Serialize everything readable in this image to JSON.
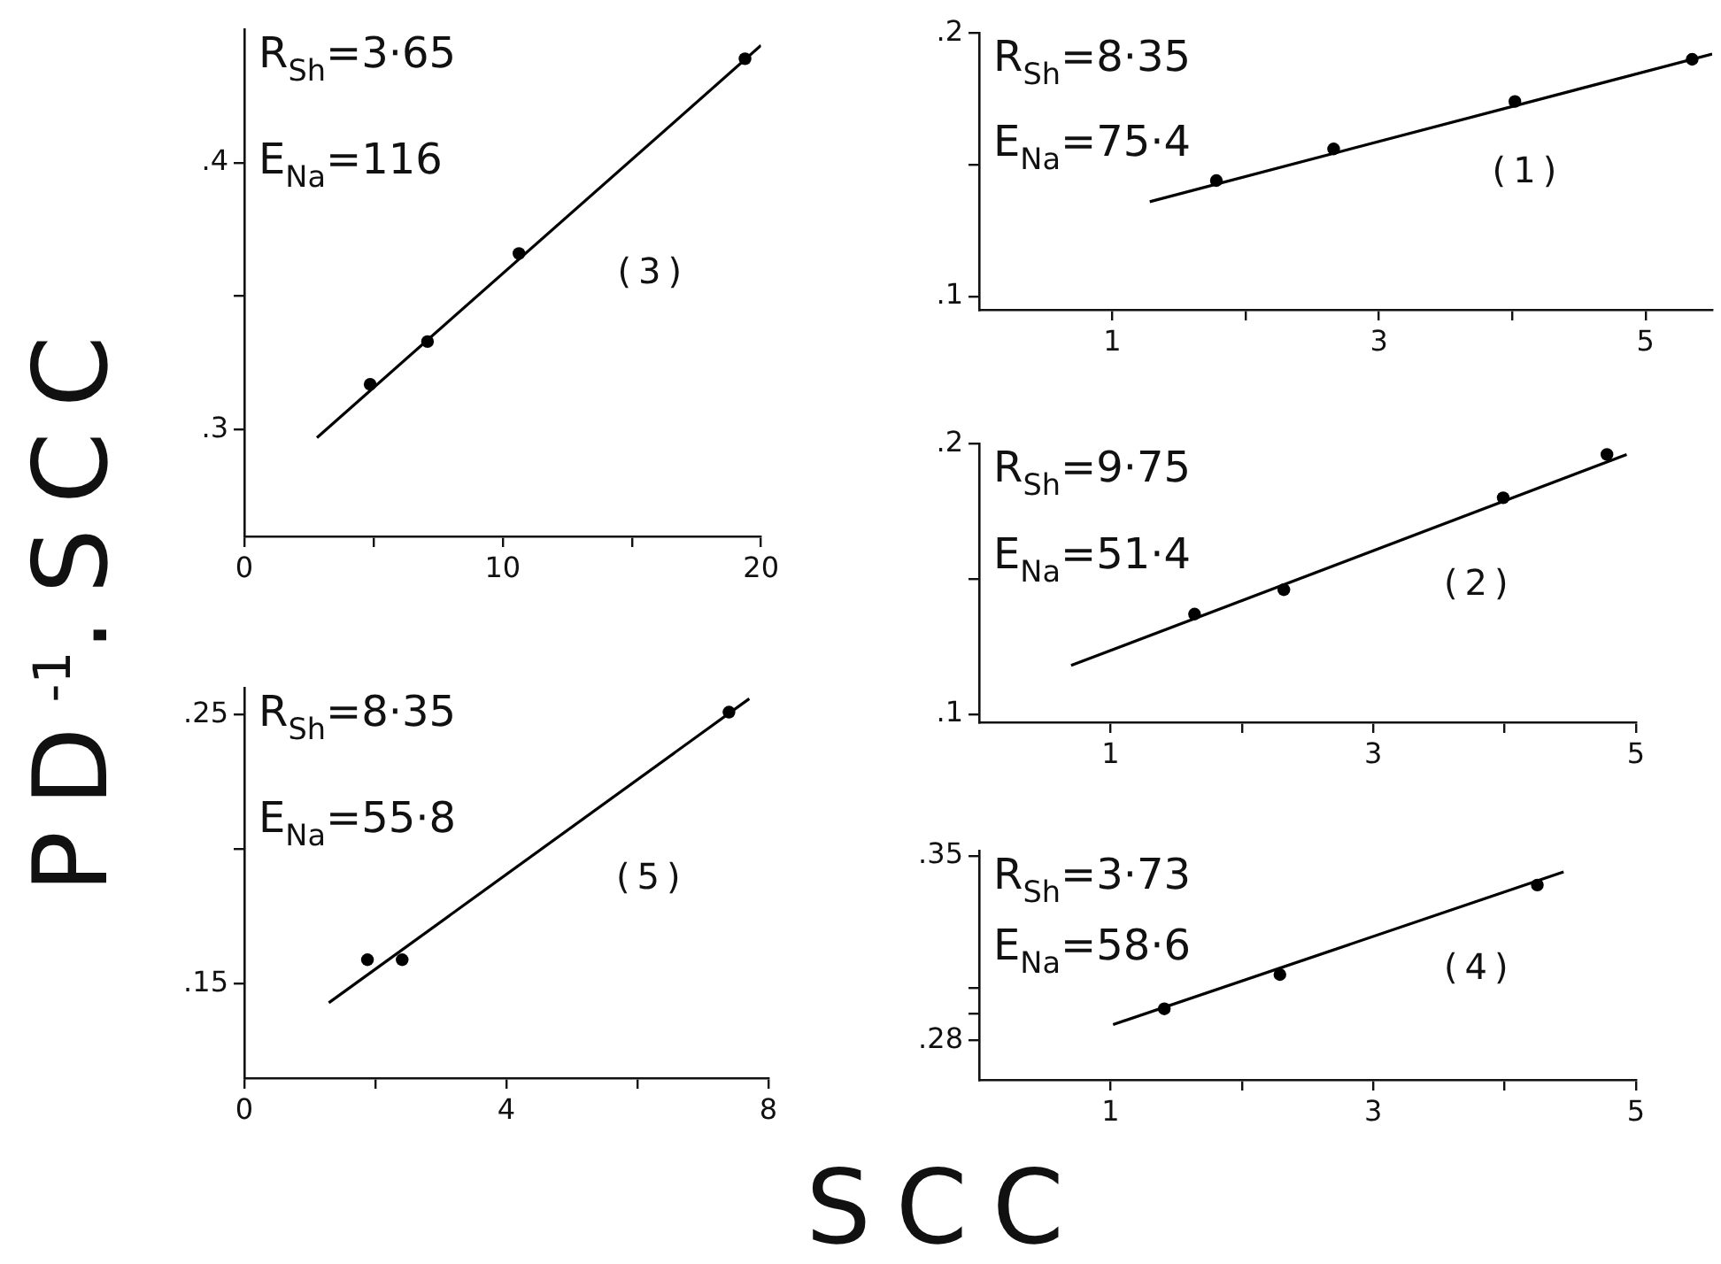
{
  "chart_data": [
    {
      "type": "scatter",
      "ylabel": "PD$^{-1}$.SCC",
      "marker": "circle",
      "legend": false,
      "grid": false,
      "xlim": [
        0,
        20
      ],
      "ylim": [
        0.26,
        0.45
      ],
      "xticks": [
        0,
        {
          "value": 5,
          "label": null
        },
        10,
        {
          "value": 15,
          "label": null
        },
        20
      ],
      "yticks": [
        {
          "value": 0.3,
          "label": ".3"
        },
        {
          "value": 0.35,
          "label": null
        },
        {
          "value": 0.4,
          "label": ".4"
        }
      ],
      "annotations": [
        "R$_{Sh}$=3·65",
        "E$_{Na}$=116",
        "(3)"
      ],
      "series": [
        {
          "color": "#000000",
          "x": [
            4.87,
            7.09,
            10.63,
            19.38
          ],
          "values": [
            0.317,
            0.333,
            0.366,
            0.439
          ]
        },
        {
          "type": "line",
          "marker": "none",
          "color": "#000000",
          "x": [
            2.81,
            20
          ],
          "values": [
            0.297,
            0.444
          ]
        }
      ]
    },
    {
      "type": "scatter",
      "marker": "circle",
      "legend": false,
      "grid": false,
      "xlim": [
        0,
        5.5
      ],
      "ylim": [
        0.095,
        0.2
      ],
      "xticks": [
        1,
        {
          "value": 2,
          "label": null
        },
        3,
        {
          "value": 4,
          "label": null
        },
        5
      ],
      "yticks": [
        {
          "value": 0.1,
          "label": ".1"
        },
        {
          "value": 0.15,
          "label": null
        },
        {
          "value": 0.2,
          "label": ".2"
        }
      ],
      "annotations": [
        "R$_{Sh}$=8·35",
        "E$_{Na}$=75·4",
        "(1)"
      ],
      "series": [
        {
          "color": "#000000",
          "x": [
            1.78,
            2.66,
            4.02,
            5.35
          ],
          "values": [
            0.144,
            0.156,
            0.174,
            0.19
          ]
        },
        {
          "type": "line",
          "marker": "none",
          "color": "#000000",
          "x": [
            1.28,
            5.5
          ],
          "values": [
            0.136,
            0.192
          ]
        }
      ]
    },
    {
      "type": "scatter",
      "marker": "circle",
      "legend": false,
      "grid": false,
      "xlim": [
        0,
        5
      ],
      "ylim": [
        0.097,
        0.2
      ],
      "xticks": [
        1,
        {
          "value": 2,
          "label": null
        },
        3,
        {
          "value": 4,
          "label": null
        },
        5
      ],
      "yticks": [
        {
          "value": 0.1,
          "label": ".1"
        },
        {
          "value": 0.15,
          "label": null
        },
        {
          "value": 0.2,
          "label": ".2"
        }
      ],
      "annotations": [
        "R$_{Sh}$=9·75",
        "E$_{Na}$=51·4",
        "(2)"
      ],
      "series": [
        {
          "color": "#000000",
          "x": [
            1.64,
            2.32,
            3.99,
            4.78
          ],
          "values": [
            0.137,
            0.146,
            0.18,
            0.196
          ]
        },
        {
          "type": "line",
          "marker": "none",
          "color": "#000000",
          "x": [
            0.7,
            4.93
          ],
          "values": [
            0.118,
            0.196
          ]
        }
      ]
    },
    {
      "type": "scatter",
      "xlabel": "SCC",
      "marker": "circle",
      "legend": false,
      "grid": false,
      "xlim": [
        0,
        8
      ],
      "ylim": [
        0.115,
        0.26
      ],
      "xticks": [
        0,
        {
          "value": 2,
          "label": null
        },
        4,
        {
          "value": 6,
          "label": null
        },
        8
      ],
      "yticks": [
        {
          "value": 0.15,
          "label": ".15"
        },
        {
          "value": 0.2,
          "label": null
        },
        {
          "value": 0.25,
          "label": ".25"
        }
      ],
      "annotations": [
        "R$_{Sh}$=8·35",
        "E$_{Na}$=55·8",
        "(5)"
      ],
      "series": [
        {
          "color": "#000000",
          "x": [
            1.88,
            2.41,
            7.4
          ],
          "values": [
            0.159,
            0.159,
            0.251
          ]
        },
        {
          "type": "line",
          "marker": "none",
          "color": "#000000",
          "x": [
            1.29,
            7.71
          ],
          "values": [
            0.143,
            0.256
          ]
        }
      ]
    },
    {
      "type": "scatter",
      "marker": "circle",
      "legend": false,
      "grid": false,
      "xlim": [
        0,
        5
      ],
      "ylim": [
        0.265,
        0.352
      ],
      "xticks": [
        1,
        {
          "value": 2,
          "label": null
        },
        3,
        {
          "value": 4,
          "label": null
        },
        5
      ],
      "yticks": [
        {
          "value": 0.28,
          "label": ".28"
        },
        {
          "value": 0.29,
          "label": null
        },
        {
          "value": 0.3,
          "label": null
        },
        {
          "value": 0.35,
          "label": ".35"
        }
      ],
      "annotations": [
        "R$_{Sh}$=3·73",
        "E$_{Na}$=58·6",
        "(4)"
      ],
      "series": [
        {
          "color": "#000000",
          "x": [
            1.41,
            2.29,
            4.25
          ],
          "values": [
            0.292,
            0.305,
            0.339
          ]
        },
        {
          "type": "line",
          "marker": "none",
          "color": "#000000",
          "x": [
            1.02,
            4.45
          ],
          "values": [
            0.286,
            0.344
          ]
        }
      ]
    }
  ]
}
